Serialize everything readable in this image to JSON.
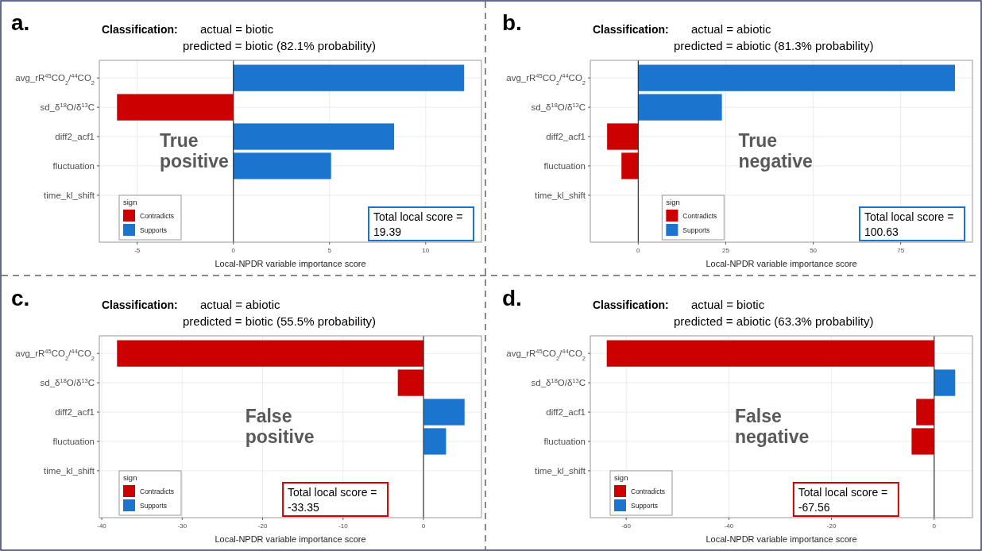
{
  "chart_data": [
    {
      "type": "bar",
      "orientation": "horizontal",
      "stacked": true,
      "title": "Classification:",
      "subtitle": "actual = biotic\npredicted = biotic (82.1% probability)",
      "xlabel": "Local-NPDR variable importance score",
      "legend_title": "sign",
      "legend": "bottom left",
      "grid": true,
      "categories": [
        "avg_rR$^{45}$CO$_{2}$/$^{44}$CO$_{2}$",
        "sd_δ$^{18}$O/δ$^{13}$C",
        "diff2_acf1",
        "fluctuation",
        "time_kl_shift"
      ],
      "series": [
        {
          "name": "Contradicts",
          "color": "#cc0000",
          "values": [
            null,
            -6.05,
            null,
            null,
            null
          ]
        },
        {
          "name": "Supports",
          "color": "#1b75cf",
          "values": [
            12.0,
            null,
            8.36,
            5.08,
            null
          ]
        }
      ],
      "xlim": [
        -6.97,
        12.9
      ],
      "xticks": [
        -5,
        0,
        5,
        10
      ],
      "ref_lines": [
        {
          "axis": "x",
          "value": 0,
          "color": "#333333"
        }
      ],
      "annotations": [
        "a.",
        "True\npositive",
        "Total local score =\n19.39"
      ]
    },
    {
      "type": "bar",
      "orientation": "horizontal",
      "stacked": true,
      "title": "Classification:",
      "subtitle": "actual = abiotic\npredicted = abiotic (81.3% probability)",
      "xlabel": "Local-NPDR variable importance score",
      "legend_title": "sign",
      "legend": "bottom left",
      "grid": true,
      "categories": [
        "avg_rR$^{45}$CO$_{2}$/$^{44}$CO$_{2}$",
        "sd_δ$^{18}$O/δ$^{13}$C",
        "diff2_acf1",
        "fluctuation",
        "time_kl_shift"
      ],
      "series": [
        {
          "name": "Contradicts",
          "color": "#cc0000",
          "values": [
            null,
            null,
            -8.9,
            -4.8,
            null
          ]
        },
        {
          "name": "Supports",
          "color": "#1b75cf",
          "values": [
            90.5,
            23.9,
            null,
            null,
            null
          ]
        }
      ],
      "xlim": [
        -13.7,
        95.5
      ],
      "xticks": [
        0,
        25,
        50,
        75
      ],
      "ref_lines": [
        {
          "axis": "x",
          "value": 0,
          "color": "#333333"
        }
      ],
      "annotations": [
        "b.",
        "True\nnegative",
        "Total local score =\n100.63"
      ]
    },
    {
      "type": "bar",
      "orientation": "horizontal",
      "stacked": true,
      "title": "Classification:",
      "subtitle": "actual = abiotic\npredicted = biotic (55.5% probability)",
      "xlabel": "Local-NPDR variable importance score",
      "legend_title": "sign",
      "legend": "bottom left",
      "grid": true,
      "categories": [
        "avg_rR$^{45}$CO$_{2}$/$^{44}$CO$_{2}$",
        "sd_δ$^{18}$O/δ$^{13}$C",
        "diff2_acf1",
        "fluctuation",
        "time_kl_shift"
      ],
      "series": [
        {
          "name": "Contradicts",
          "color": "#cc0000",
          "values": [
            -38.1,
            -3.2,
            null,
            null,
            null
          ]
        },
        {
          "name": "Supports",
          "color": "#1b75cf",
          "values": [
            null,
            null,
            5.1,
            2.8,
            null
          ]
        }
      ],
      "xlim": [
        -40.3,
        7.2
      ],
      "xticks": [
        -40,
        -30,
        -20,
        -10,
        0
      ],
      "ref_lines": [
        {
          "axis": "x",
          "value": 0,
          "color": "#333333"
        }
      ],
      "annotations": [
        "c.",
        "False\npositive",
        "Total local score =\n-33.35"
      ]
    },
    {
      "type": "bar",
      "orientation": "horizontal",
      "stacked": true,
      "title": "Classification:",
      "subtitle": "actual = biotic\npredicted = abiotic (63.3% probability)",
      "xlabel": "Local-NPDR variable importance score",
      "legend_title": "sign",
      "legend": "bottom left",
      "grid": true,
      "categories": [
        "avg_rR$^{45}$CO$_{2}$/$^{44}$CO$_{2}$",
        "sd_δ$^{18}$O/δ$^{13}$C",
        "diff2_acf1",
        "fluctuation",
        "time_kl_shift"
      ],
      "series": [
        {
          "name": "Contradicts",
          "color": "#cc0000",
          "values": [
            -63.8,
            null,
            -3.5,
            -4.4,
            null
          ]
        },
        {
          "name": "Supports",
          "color": "#1b75cf",
          "values": [
            null,
            4.1,
            null,
            null,
            null
          ]
        }
      ],
      "xlim": [
        -67.0,
        7.46
      ],
      "xticks": [
        -60,
        -40,
        -20,
        0
      ],
      "ref_lines": [
        {
          "axis": "x",
          "value": 0,
          "color": "#333333"
        }
      ],
      "annotations": [
        "d.",
        "False\nnegative",
        "Total local score =\n-67.56"
      ]
    }
  ]
}
